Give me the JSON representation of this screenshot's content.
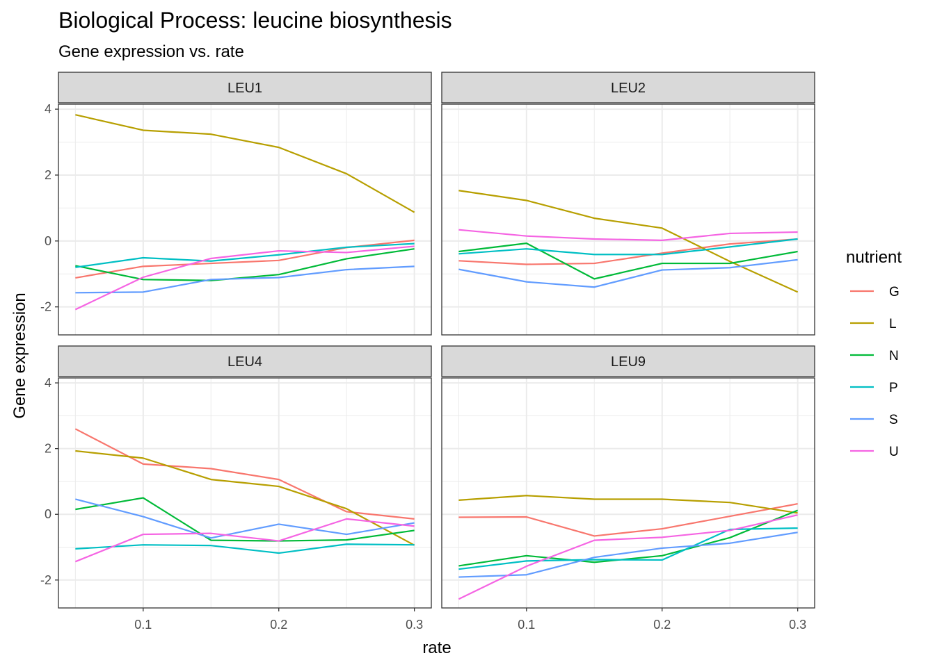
{
  "title": "Biological Process: leucine biosynthesis",
  "subtitle": "Gene expression vs. rate",
  "chart_data": {
    "type": "line",
    "title": "Biological Process: leucine biosynthesis",
    "subtitle": "Gene expression vs. rate",
    "xlabel": "rate",
    "ylabel": "Gene expression",
    "xlim": [
      0.0375,
      0.3125
    ],
    "ylim": [
      -2.85,
      4.15
    ],
    "x_ticks": [
      0.1,
      0.2,
      0.3
    ],
    "x_tick_labels": [
      "0.1",
      "0.2",
      "0.3"
    ],
    "y_ticks": [
      -2,
      0,
      2,
      4
    ],
    "y_tick_labels": [
      "-2",
      "0",
      "2",
      "4"
    ],
    "grid": true,
    "legend": {
      "title": "nutrient",
      "position": "right"
    },
    "colors": {
      "G": "#F8766D",
      "L": "#B79F00",
      "N": "#00BA38",
      "P": "#00BFC4",
      "S": "#619CFF",
      "U": "#F564E3"
    },
    "x": [
      0.05,
      0.1,
      0.15,
      0.2,
      0.25,
      0.3
    ],
    "panels": [
      {
        "label": "LEU1",
        "series": [
          {
            "name": "G",
            "values": [
              -1.12,
              -0.77,
              -0.68,
              -0.59,
              -0.2,
              0.02
            ]
          },
          {
            "name": "L",
            "values": [
              3.83,
              3.36,
              3.24,
              2.84,
              2.04,
              0.87
            ]
          },
          {
            "name": "N",
            "values": [
              -0.75,
              -1.17,
              -1.2,
              -1.02,
              -0.54,
              -0.24
            ]
          },
          {
            "name": "P",
            "values": [
              -0.8,
              -0.51,
              -0.61,
              -0.42,
              -0.19,
              -0.08
            ]
          },
          {
            "name": "S",
            "values": [
              -1.57,
              -1.55,
              -1.17,
              -1.11,
              -0.87,
              -0.77
            ]
          },
          {
            "name": "U",
            "values": [
              -2.08,
              -1.1,
              -0.53,
              -0.3,
              -0.35,
              -0.16
            ]
          }
        ]
      },
      {
        "label": "LEU2",
        "series": [
          {
            "name": "G",
            "values": [
              -0.6,
              -0.71,
              -0.68,
              -0.37,
              -0.09,
              0.06
            ]
          },
          {
            "name": "L",
            "values": [
              1.53,
              1.23,
              0.69,
              0.39,
              -0.62,
              -1.55
            ]
          },
          {
            "name": "N",
            "values": [
              -0.32,
              -0.07,
              -1.15,
              -0.68,
              -0.68,
              -0.32
            ]
          },
          {
            "name": "P",
            "values": [
              -0.39,
              -0.24,
              -0.41,
              -0.41,
              -0.18,
              0.06
            ]
          },
          {
            "name": "S",
            "values": [
              -0.86,
              -1.24,
              -1.4,
              -0.88,
              -0.81,
              -0.57
            ]
          },
          {
            "name": "U",
            "values": [
              0.34,
              0.15,
              0.06,
              0.02,
              0.23,
              0.27
            ]
          }
        ]
      },
      {
        "label": "LEU4",
        "series": [
          {
            "name": "G",
            "values": [
              2.6,
              1.53,
              1.39,
              1.06,
              0.08,
              -0.14
            ]
          },
          {
            "name": "L",
            "values": [
              1.93,
              1.71,
              1.06,
              0.85,
              0.17,
              -0.94
            ]
          },
          {
            "name": "N",
            "values": [
              0.15,
              0.5,
              -0.79,
              -0.81,
              -0.78,
              -0.49
            ]
          },
          {
            "name": "P",
            "values": [
              -1.05,
              -0.93,
              -0.95,
              -1.18,
              -0.91,
              -0.93
            ]
          },
          {
            "name": "S",
            "values": [
              0.46,
              -0.07,
              -0.72,
              -0.3,
              -0.61,
              -0.26
            ]
          },
          {
            "name": "U",
            "values": [
              -1.44,
              -0.61,
              -0.58,
              -0.81,
              -0.14,
              -0.36
            ]
          }
        ]
      },
      {
        "label": "LEU9",
        "series": [
          {
            "name": "G",
            "values": [
              -0.09,
              -0.08,
              -0.66,
              -0.44,
              -0.06,
              0.32
            ]
          },
          {
            "name": "L",
            "values": [
              0.43,
              0.57,
              0.46,
              0.46,
              0.36,
              0.04
            ]
          },
          {
            "name": "N",
            "values": [
              -1.57,
              -1.26,
              -1.46,
              -1.26,
              -0.71,
              0.12
            ]
          },
          {
            "name": "P",
            "values": [
              -1.67,
              -1.42,
              -1.38,
              -1.39,
              -0.46,
              -0.42
            ]
          },
          {
            "name": "S",
            "values": [
              -1.91,
              -1.84,
              -1.31,
              -1.03,
              -0.88,
              -0.55
            ]
          },
          {
            "name": "U",
            "values": [
              -2.58,
              -1.58,
              -0.79,
              -0.7,
              -0.49,
              -0.02
            ]
          }
        ]
      }
    ]
  }
}
